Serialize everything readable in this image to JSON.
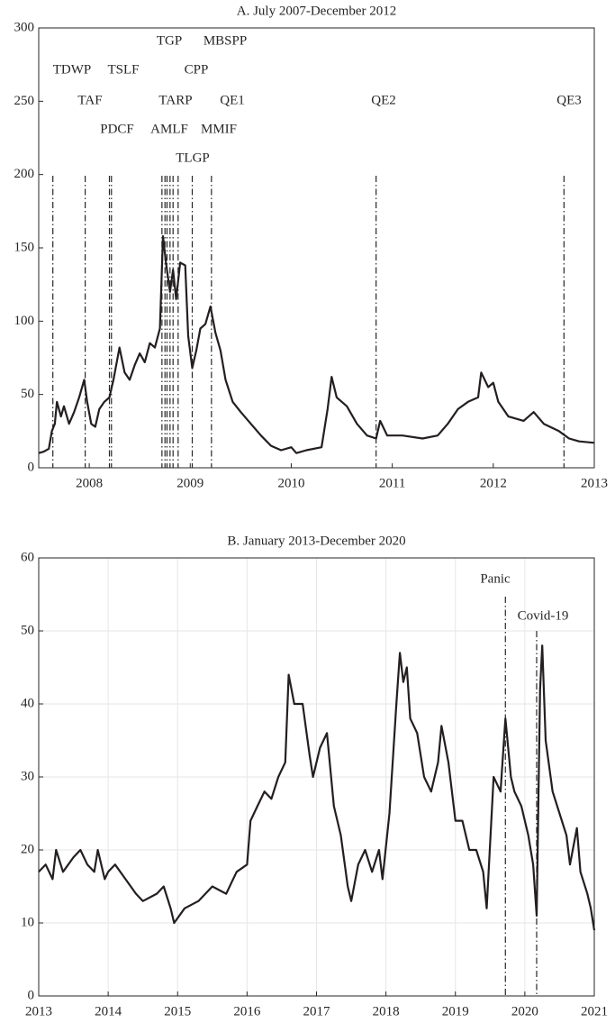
{
  "chart_data": [
    {
      "type": "line",
      "title": "A. July 2007-December 2012",
      "x": [
        2007.5,
        2007.55,
        2007.6,
        2007.63,
        2007.66,
        2007.68,
        2007.72,
        2007.75,
        2007.8,
        2007.85,
        2007.9,
        2007.95,
        2007.98,
        2008.02,
        2008.06,
        2008.1,
        2008.15,
        2008.2,
        2008.24,
        2008.3,
        2008.35,
        2008.4,
        2008.45,
        2008.5,
        2008.55,
        2008.6,
        2008.65,
        2008.7,
        2008.73,
        2008.76,
        2008.8,
        2008.83,
        2008.86,
        2008.9,
        2008.95,
        2008.98,
        2009.02,
        2009.06,
        2009.1,
        2009.15,
        2009.2,
        2009.25,
        2009.3,
        2009.35,
        2009.42,
        2009.5,
        2009.6,
        2009.7,
        2009.8,
        2009.9,
        2010.0,
        2010.05,
        2010.15,
        2010.3,
        2010.36,
        2010.4,
        2010.45,
        2010.55,
        2010.65,
        2010.75,
        2010.84,
        2010.88,
        2010.95,
        2011.1,
        2011.3,
        2011.45,
        2011.55,
        2011.65,
        2011.75,
        2011.85,
        2011.88,
        2011.95,
        2012.0,
        2012.05,
        2012.15,
        2012.3,
        2012.4,
        2012.5,
        2012.65,
        2012.75,
        2012.85,
        2013.0
      ],
      "series": [
        {
          "color": "#231f20",
          "values": [
            10,
            11,
            13,
            25,
            30,
            45,
            35,
            42,
            30,
            38,
            48,
            60,
            45,
            30,
            28,
            40,
            45,
            48,
            60,
            82,
            65,
            60,
            70,
            78,
            72,
            85,
            82,
            95,
            158,
            140,
            120,
            135,
            115,
            140,
            138,
            90,
            68,
            80,
            95,
            98,
            110,
            92,
            80,
            60,
            45,
            38,
            30,
            22,
            15,
            12,
            14,
            10,
            12,
            14,
            40,
            62,
            48,
            42,
            30,
            22,
            20,
            32,
            22,
            22,
            20,
            22,
            30,
            40,
            45,
            48,
            65,
            55,
            58,
            45,
            35,
            32,
            38,
            30,
            25,
            20,
            18,
            17
          ]
        }
      ],
      "xlim": [
        2007.5,
        2013
      ],
      "ylim": [
        0,
        300
      ],
      "xticks": [
        2008,
        2009,
        2010,
        2011,
        2012,
        2013
      ],
      "yticks": [
        0,
        50,
        100,
        150,
        200,
        250,
        300
      ],
      "grid": false,
      "events": [
        {
          "label": "TDWP",
          "x": 2007.64
        },
        {
          "label": "TAF",
          "x": 2007.96
        },
        {
          "label": "TSLF",
          "x": 2008.2
        },
        {
          "label": "PDCF",
          "x": 2008.22
        },
        {
          "label": "TARP",
          "x": 2008.72
        },
        {
          "label": "AMLF",
          "x": 2008.75
        },
        {
          "label": "TGP",
          "x": 2008.77
        },
        {
          "label": "CPP",
          "x": 2008.8
        },
        {
          "label": "MMIF",
          "x": 2008.83
        },
        {
          "label": "TLGP",
          "x": 2008.88
        },
        {
          "label": "MBSPP",
          "x": 2009.02
        },
        {
          "label": "QE1",
          "x": 2009.21
        },
        {
          "label": "QE2",
          "x": 2010.84
        },
        {
          "label": "QE3",
          "x": 2012.7
        }
      ]
    },
    {
      "type": "line",
      "title": "B. January 2013-December 2020",
      "x": [
        2013,
        2013.1,
        2013.2,
        2013.25,
        2013.35,
        2013.5,
        2013.6,
        2013.7,
        2013.8,
        2013.85,
        2013.95,
        2014.0,
        2014.1,
        2014.25,
        2014.4,
        2014.5,
        2014.7,
        2014.8,
        2014.9,
        2014.95,
        2015.1,
        2015.3,
        2015.5,
        2015.7,
        2015.85,
        2016.0,
        2016.05,
        2016.15,
        2016.25,
        2016.35,
        2016.45,
        2016.55,
        2016.6,
        2016.68,
        2016.8,
        2016.9,
        2016.95,
        2017.05,
        2017.15,
        2017.25,
        2017.35,
        2017.45,
        2017.5,
        2017.6,
        2017.7,
        2017.8,
        2017.9,
        2017.95,
        2018.05,
        2018.15,
        2018.2,
        2018.25,
        2018.3,
        2018.35,
        2018.45,
        2018.55,
        2018.65,
        2018.75,
        2018.8,
        2018.9,
        2019.0,
        2019.1,
        2019.2,
        2019.3,
        2019.4,
        2019.45,
        2019.55,
        2019.65,
        2019.72,
        2019.8,
        2019.85,
        2019.95,
        2020.05,
        2020.12,
        2020.17,
        2020.22,
        2020.25,
        2020.3,
        2020.4,
        2020.5,
        2020.6,
        2020.65,
        2020.75,
        2020.8,
        2020.9,
        2020.95,
        2021.0
      ],
      "series": [
        {
          "color": "#231f20",
          "values": [
            17,
            18,
            16,
            20,
            17,
            19,
            20,
            18,
            17,
            20,
            16,
            17,
            18,
            16,
            14,
            13,
            14,
            15,
            12,
            10,
            12,
            13,
            15,
            14,
            17,
            18,
            24,
            26,
            28,
            27,
            30,
            32,
            44,
            40,
            40,
            33,
            30,
            34,
            36,
            26,
            22,
            15,
            13,
            18,
            20,
            17,
            20,
            16,
            25,
            40,
            47,
            43,
            45,
            38,
            36,
            30,
            28,
            32,
            37,
            32,
            24,
            24,
            20,
            20,
            17,
            12,
            30,
            28,
            38,
            30,
            28,
            26,
            22,
            18,
            11,
            42,
            48,
            35,
            28,
            25,
            22,
            18,
            23,
            17,
            14,
            12,
            9
          ]
        }
      ],
      "xlim": [
        2013,
        2021
      ],
      "ylim": [
        0,
        60
      ],
      "xticks": [
        2013,
        2014,
        2015,
        2016,
        2017,
        2018,
        2019,
        2020,
        2021
      ],
      "yticks": [
        0,
        10,
        20,
        30,
        40,
        50,
        60
      ],
      "grid": true,
      "events": [
        {
          "label": "Panic",
          "x": 2019.72
        },
        {
          "label": "Covid-19",
          "x": 2020.17
        }
      ]
    }
  ]
}
